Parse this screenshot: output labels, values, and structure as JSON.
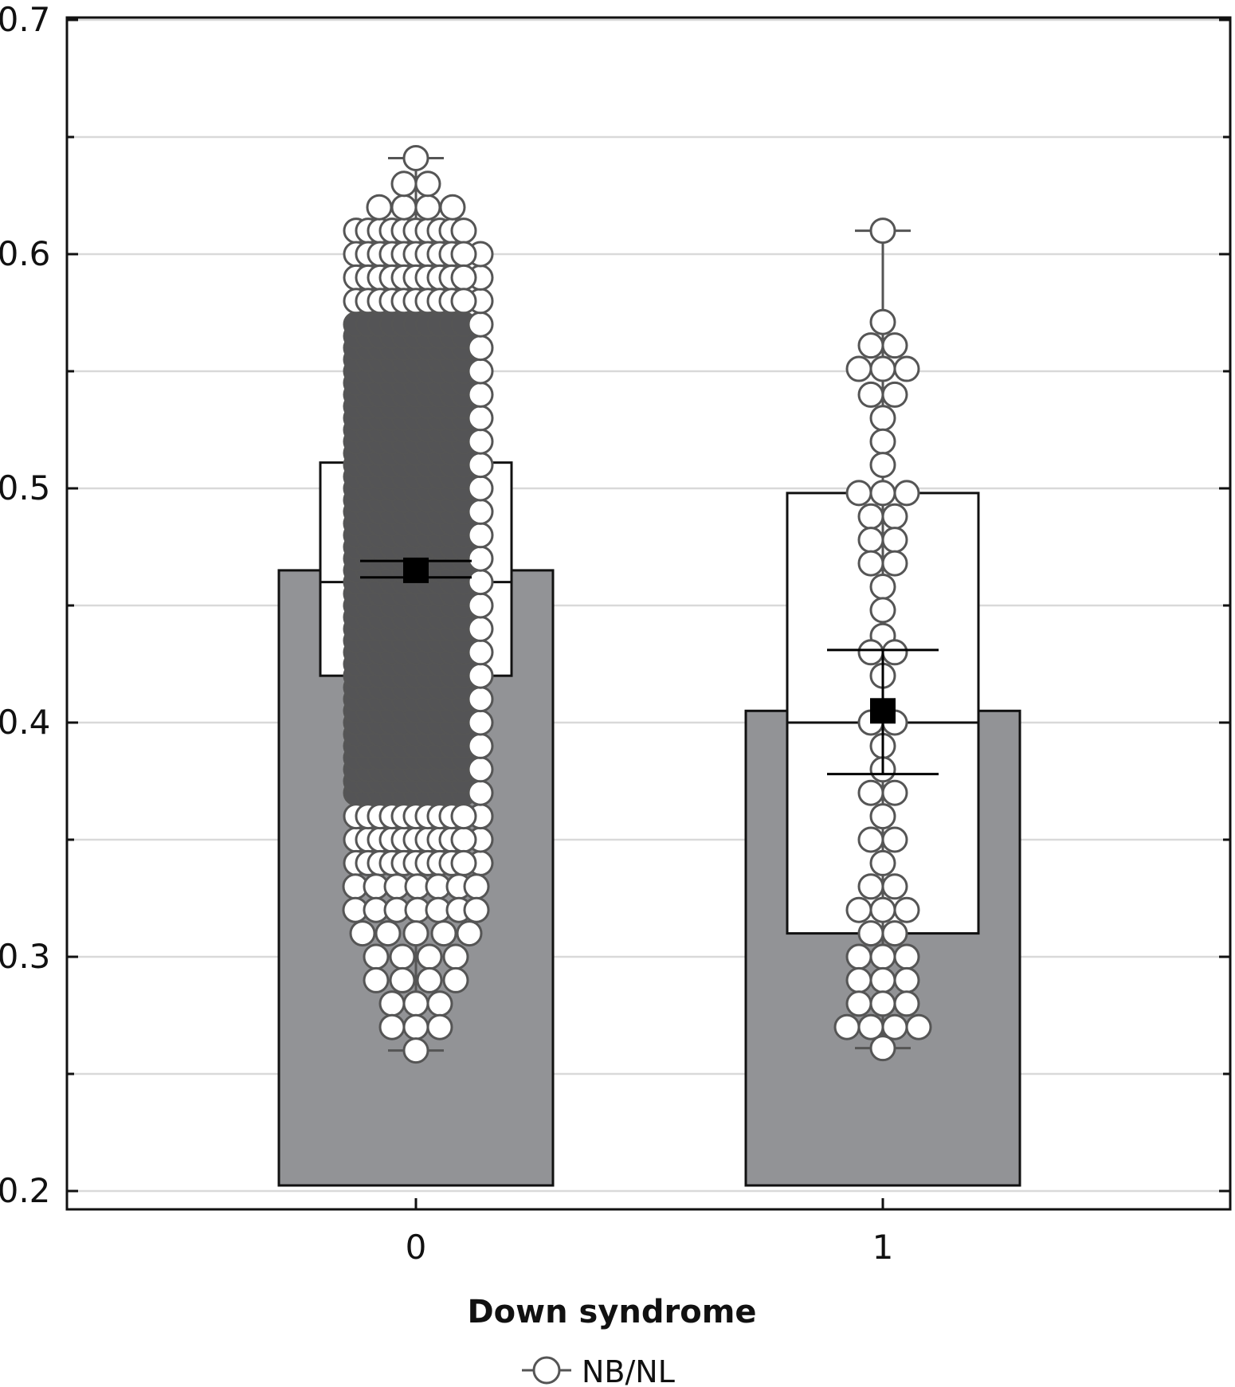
{
  "chart_data": {
    "type": "bar",
    "xlabel": "Down syndrome",
    "ylabel": "",
    "ylim": [
      0.2,
      0.7
    ],
    "yticks": [
      "0.2",
      "0.3",
      "0.4",
      "0.5",
      "0.6",
      "0.7"
    ],
    "categories": [
      "0",
      "1"
    ],
    "grid": true,
    "legend": {
      "position": "bottom-center",
      "entries": [
        "NB/NL"
      ]
    },
    "colors": {
      "bar": "#929396",
      "box": "#ffffff",
      "dense_points": "#545456",
      "point_edge": "#555555",
      "mean_marker": "#000000",
      "grid": "#d9d9d9"
    },
    "series": [
      {
        "name": "NB/NL",
        "values": [
          0.465,
          0.405
        ],
        "mean": [
          0.465,
          0.405
        ],
        "mean_error_range": [
          [
            0.462,
            0.469
          ],
          [
            0.378,
            0.431
          ]
        ],
        "box_range": [
          [
            0.42,
            0.511
          ],
          [
            0.31,
            0.498
          ]
        ],
        "median": [
          0.46,
          0.4
        ],
        "whisker_range": [
          [
            0.26,
            0.641
          ],
          [
            0.261,
            0.61
          ]
        ]
      }
    ]
  }
}
